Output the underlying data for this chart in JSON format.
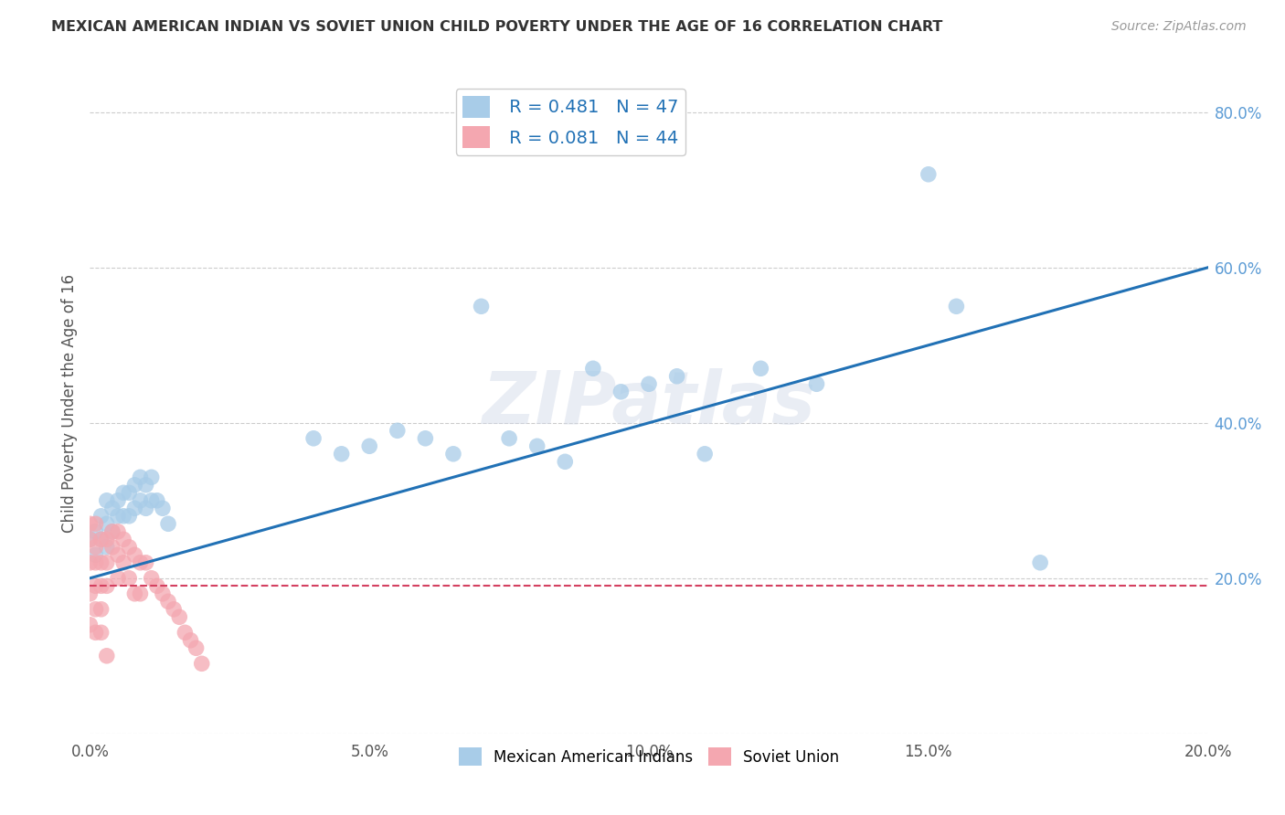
{
  "title": "MEXICAN AMERICAN INDIAN VS SOVIET UNION CHILD POVERTY UNDER THE AGE OF 16 CORRELATION CHART",
  "source": "Source: ZipAtlas.com",
  "ylabel": "Child Poverty Under the Age of 16",
  "legend_label_1": "Mexican American Indians",
  "legend_label_2": "Soviet Union",
  "R1": 0.481,
  "N1": 47,
  "R2": 0.081,
  "N2": 44,
  "color1": "#a8cce8",
  "color2": "#f4a7b0",
  "color1_line": "#2171b5",
  "color2_line": "#d44060",
  "watermark": "ZIPatlas",
  "xlim": [
    0.0,
    0.2
  ],
  "ylim": [
    0.0,
    0.85
  ],
  "xticks": [
    0.0,
    0.05,
    0.1,
    0.15,
    0.2
  ],
  "yticks_right": [
    0.2,
    0.4,
    0.6,
    0.8
  ],
  "scatter1_x": [
    0.0,
    0.001,
    0.001,
    0.002,
    0.002,
    0.003,
    0.003,
    0.003,
    0.004,
    0.004,
    0.005,
    0.005,
    0.006,
    0.006,
    0.007,
    0.007,
    0.008,
    0.008,
    0.009,
    0.009,
    0.01,
    0.01,
    0.011,
    0.011,
    0.012,
    0.013,
    0.014,
    0.04,
    0.045,
    0.05,
    0.055,
    0.06,
    0.065,
    0.07,
    0.075,
    0.08,
    0.085,
    0.09,
    0.095,
    0.1,
    0.105,
    0.11,
    0.12,
    0.13,
    0.15,
    0.155,
    0.17
  ],
  "scatter1_y": [
    0.25,
    0.26,
    0.23,
    0.28,
    0.25,
    0.3,
    0.27,
    0.24,
    0.29,
    0.26,
    0.3,
    0.28,
    0.31,
    0.28,
    0.31,
    0.28,
    0.32,
    0.29,
    0.33,
    0.3,
    0.32,
    0.29,
    0.33,
    0.3,
    0.3,
    0.29,
    0.27,
    0.38,
    0.36,
    0.37,
    0.39,
    0.38,
    0.36,
    0.55,
    0.38,
    0.37,
    0.35,
    0.47,
    0.44,
    0.45,
    0.46,
    0.36,
    0.47,
    0.45,
    0.72,
    0.55,
    0.22
  ],
  "scatter2_x": [
    0.0,
    0.0,
    0.0,
    0.0,
    0.0,
    0.001,
    0.001,
    0.001,
    0.001,
    0.001,
    0.001,
    0.002,
    0.002,
    0.002,
    0.002,
    0.002,
    0.003,
    0.003,
    0.003,
    0.003,
    0.004,
    0.004,
    0.005,
    0.005,
    0.005,
    0.006,
    0.006,
    0.007,
    0.007,
    0.008,
    0.008,
    0.009,
    0.009,
    0.01,
    0.011,
    0.012,
    0.013,
    0.014,
    0.015,
    0.016,
    0.017,
    0.018,
    0.019,
    0.02
  ],
  "scatter2_y": [
    0.27,
    0.25,
    0.22,
    0.18,
    0.14,
    0.27,
    0.24,
    0.22,
    0.19,
    0.16,
    0.13,
    0.25,
    0.22,
    0.19,
    0.16,
    0.13,
    0.25,
    0.22,
    0.19,
    0.1,
    0.26,
    0.24,
    0.26,
    0.23,
    0.2,
    0.25,
    0.22,
    0.24,
    0.2,
    0.23,
    0.18,
    0.22,
    0.18,
    0.22,
    0.2,
    0.19,
    0.18,
    0.17,
    0.16,
    0.15,
    0.13,
    0.12,
    0.11,
    0.09
  ],
  "line1_x": [
    0.0,
    0.2
  ],
  "line1_y": [
    0.2,
    0.6
  ],
  "line2_x": [
    0.0,
    0.2
  ],
  "line2_y": [
    0.19,
    0.19
  ],
  "background_color": "#ffffff",
  "grid_color": "#cccccc"
}
